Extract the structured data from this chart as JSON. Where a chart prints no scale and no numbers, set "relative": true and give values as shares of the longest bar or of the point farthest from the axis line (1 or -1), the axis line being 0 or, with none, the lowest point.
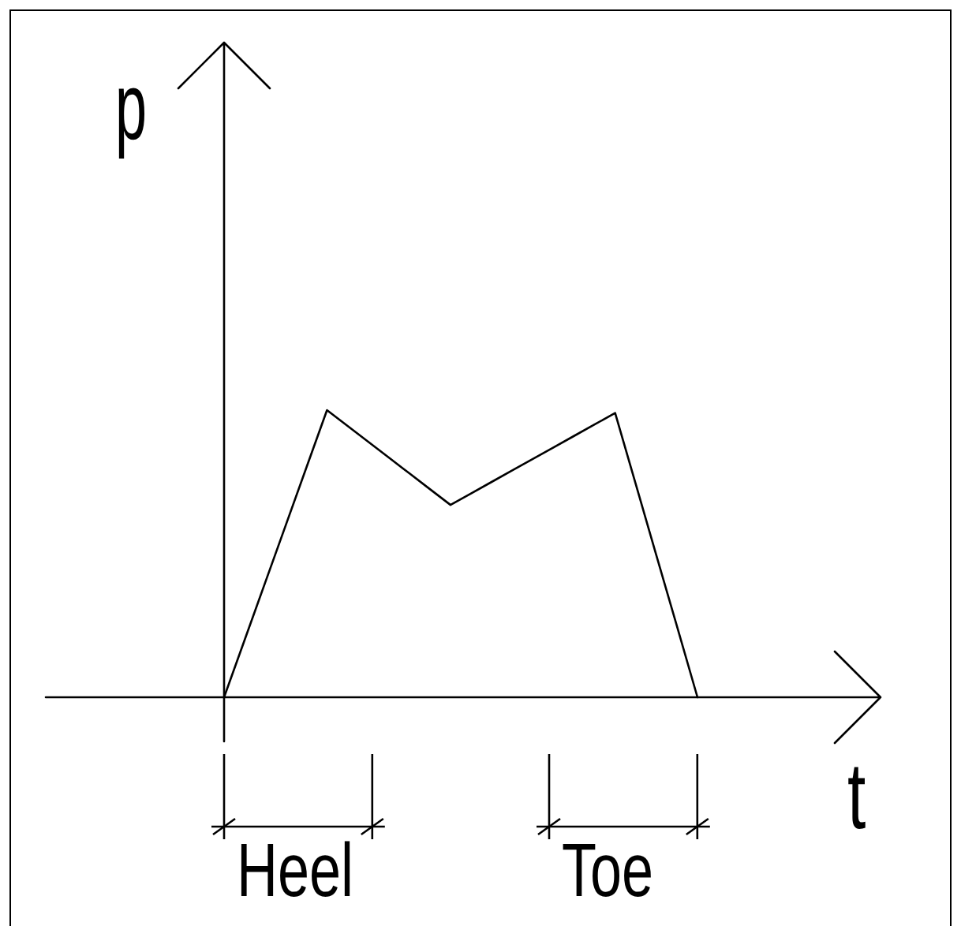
{
  "chart_data": {
    "type": "line",
    "xlabel": "t",
    "ylabel": "p",
    "annotations": [
      "Heel",
      "Toe"
    ],
    "categories": [
      null,
      null,
      null,
      null,
      null,
      null,
      null,
      null,
      null,
      null,
      null,
      null,
      null,
      null,
      null,
      null,
      null,
      null,
      null,
      null,
      null,
      null,
      null,
      null
    ],
    "series": [
      {
        "color": "#000000",
        "values": [
          0,
          0.2,
          0.4,
          0.6,
          0.8,
          1,
          0.945,
          0.89,
          0.835,
          0.78,
          0.725,
          0.67,
          0.71,
          0.75,
          0.79,
          0.83,
          0.87,
          0.91,
          0.95,
          0.99,
          0.743,
          0.495,
          0.248,
          0
        ]
      }
    ],
    "relative": true,
    "marker": "none"
  }
}
